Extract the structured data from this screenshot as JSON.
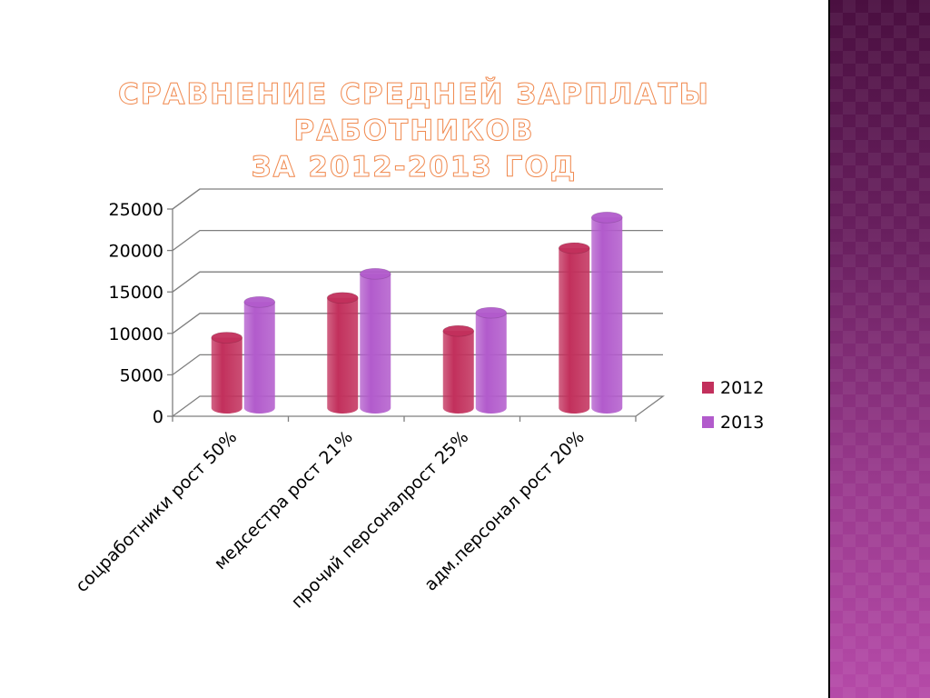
{
  "slide": {
    "title_line1": "СРАВНЕНИЕ СРЕДНЕЙ ЗАРПЛАТЫ РАБОТНИКОВ",
    "title_line2": "ЗА 2012-2013 ГОД"
  },
  "chart_data": {
    "type": "bar",
    "title": "",
    "xlabel": "",
    "ylabel": "",
    "categories": [
      "соцработники рост 50%",
      "медсестра рост 21%",
      "прочий персоналрост 25%",
      "адм.персонал рост  20%"
    ],
    "series": [
      {
        "name": "2012",
        "values": [
          8500,
          13300,
          9300,
          19300
        ],
        "color": "#c2305c"
      },
      {
        "name": "2013",
        "values": [
          12800,
          16200,
          11500,
          23000
        ],
        "color": "#b25bcc"
      }
    ],
    "ylim": [
      0,
      25000
    ],
    "yticks": [
      "0",
      "5000",
      "10000",
      "15000",
      "20000",
      "25000"
    ],
    "grid": true,
    "legend": "right",
    "style": "3d-cylinder"
  },
  "colors": {
    "title_outline": "#f08a50",
    "panel_top": "#4a0f40",
    "panel_bottom": "#b54aa8"
  }
}
